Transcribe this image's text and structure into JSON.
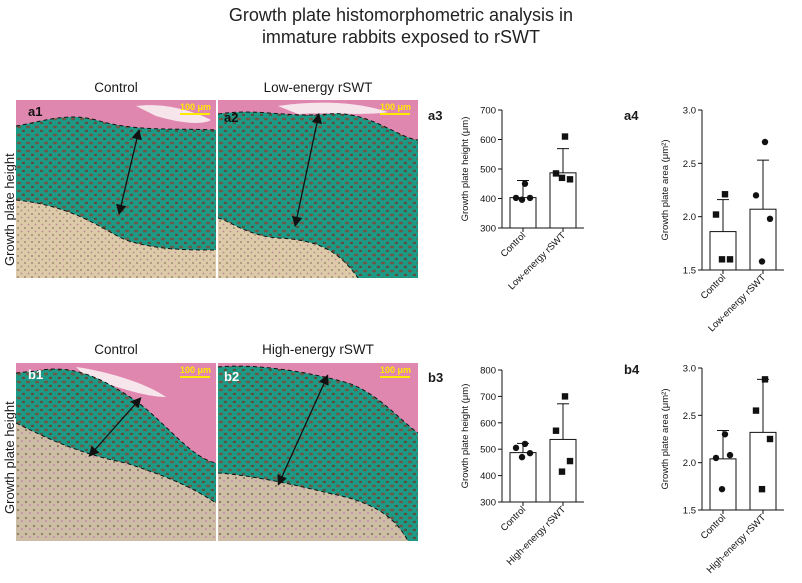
{
  "title_line1": "Growth plate histomorphometric analysis in",
  "title_line2": "immature rabbits exposed to rSWT",
  "row_a": {
    "side_label": "Growth plate height",
    "panels": [
      {
        "label": "a1",
        "header": "Control",
        "scale": "100 μm"
      },
      {
        "label": "a2",
        "header": "Low-energy rSWT",
        "scale": "100 μm"
      }
    ]
  },
  "row_b": {
    "side_label": "Growth plate height",
    "panels": [
      {
        "label": "b1",
        "header": "Control",
        "scale": "100 μm"
      },
      {
        "label": "b2",
        "header": "High-energy rSWT",
        "scale": "100 μm"
      }
    ]
  },
  "chart_data": [
    {
      "id": "a3",
      "label": "a3",
      "type": "bar",
      "categories": [
        "Control",
        "Low-energy rSWT"
      ],
      "ylabel": "Growth plate height (μm)",
      "ylim": [
        300,
        700
      ],
      "yticks": [
        300,
        400,
        500,
        600,
        700
      ],
      "means": [
        403,
        487
      ],
      "sd": [
        58,
        82
      ],
      "points": [
        [
          450,
          402,
          402,
          396
        ],
        [
          610,
          485,
          465,
          470
        ]
      ],
      "markers": [
        "circle",
        "square"
      ]
    },
    {
      "id": "a4",
      "label": "a4",
      "type": "bar",
      "categories": [
        "Control",
        "Low-energy rSWT"
      ],
      "ylabel": "Growth plate area (μm²)",
      "ylim": [
        1.5,
        3.0
      ],
      "yticks": [
        "1.5",
        "2.0",
        "2.5",
        "3.0"
      ],
      "means": [
        1.86,
        2.07
      ],
      "sd": [
        0.3,
        0.46
      ],
      "points": [
        [
          2.21,
          2.02,
          1.6,
          1.6
        ],
        [
          2.7,
          2.2,
          1.98,
          1.58
        ]
      ],
      "markers": [
        "square",
        "circle"
      ]
    },
    {
      "id": "b3",
      "label": "b3",
      "type": "bar",
      "categories": [
        "Control",
        "High-energy rSWT"
      ],
      "ylabel": "Growth plate height (μm)",
      "ylim": [
        300,
        800
      ],
      "yticks": [
        300,
        400,
        500,
        600,
        700,
        800
      ],
      "means": [
        487,
        537
      ],
      "sd": [
        35,
        135
      ],
      "points": [
        [
          520,
          505,
          485,
          470
        ],
        [
          700,
          570,
          455,
          415
        ]
      ],
      "markers": [
        "circle",
        "square"
      ]
    },
    {
      "id": "b4",
      "label": "b4",
      "type": "bar",
      "categories": [
        "Control",
        "High-energy rSWT"
      ],
      "ylabel": "Growth plate area (μm²)",
      "ylim": [
        1.5,
        3.0
      ],
      "yticks": [
        "1.5",
        "2.0",
        "2.5",
        "3.0"
      ],
      "means": [
        2.04,
        2.32
      ],
      "sd": [
        0.3,
        0.56
      ],
      "points": [
        [
          2.3,
          2.05,
          2.08,
          1.72
        ],
        [
          2.88,
          2.55,
          2.25,
          1.72
        ]
      ],
      "markers": [
        "circle",
        "square"
      ]
    }
  ]
}
